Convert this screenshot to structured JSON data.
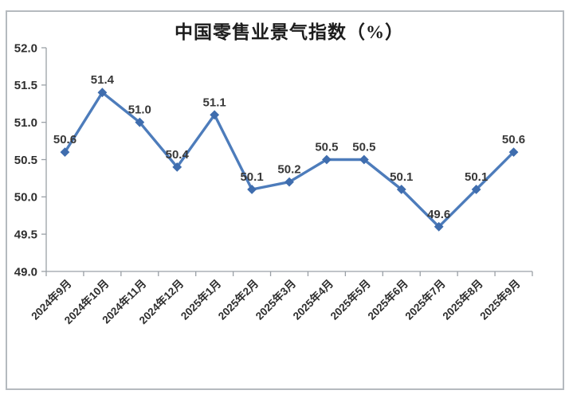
{
  "figure": {
    "background": "#ffffff",
    "border_color": "#b5babf"
  },
  "chart_data": {
    "type": "line",
    "title": "中国零售业景气指数（%）",
    "categories": [
      "2024年9月",
      "2024年10月",
      "2024年11月",
      "2024年12月",
      "2025年1月",
      "2025年2月",
      "2025年3月",
      "2025年4月",
      "2025年5月",
      "2025年6月",
      "2025年7月",
      "2025年8月",
      "2025年9月"
    ],
    "values": [
      50.6,
      51.4,
      51.0,
      50.4,
      51.1,
      50.1,
      50.2,
      50.5,
      50.5,
      50.1,
      49.6,
      50.1,
      50.6
    ],
    "data_labels": [
      "50.6",
      "51.4",
      "51.0",
      "50.4",
      "51.1",
      "50.1",
      "50.2",
      "50.5",
      "50.5",
      "50.1",
      "49.6",
      "50.1",
      "50.6"
    ],
    "ylim": [
      49.0,
      52.0
    ],
    "ytick_step": 0.5,
    "ytick_labels": [
      "52.0",
      "51.5",
      "51.0",
      "50.5",
      "50.0",
      "49.5",
      "49.0"
    ],
    "xlabel": "",
    "ylabel": "",
    "grid": false,
    "legend_position": "none",
    "x_label_rotation_deg": 45,
    "line_color": "#4d7cbb",
    "marker_shape": "diamond",
    "marker_color": "#3f6dae",
    "value_label_color": "#383838",
    "tick_label_color": "#2e2e2e",
    "axis_color": "#9aa0a6"
  }
}
